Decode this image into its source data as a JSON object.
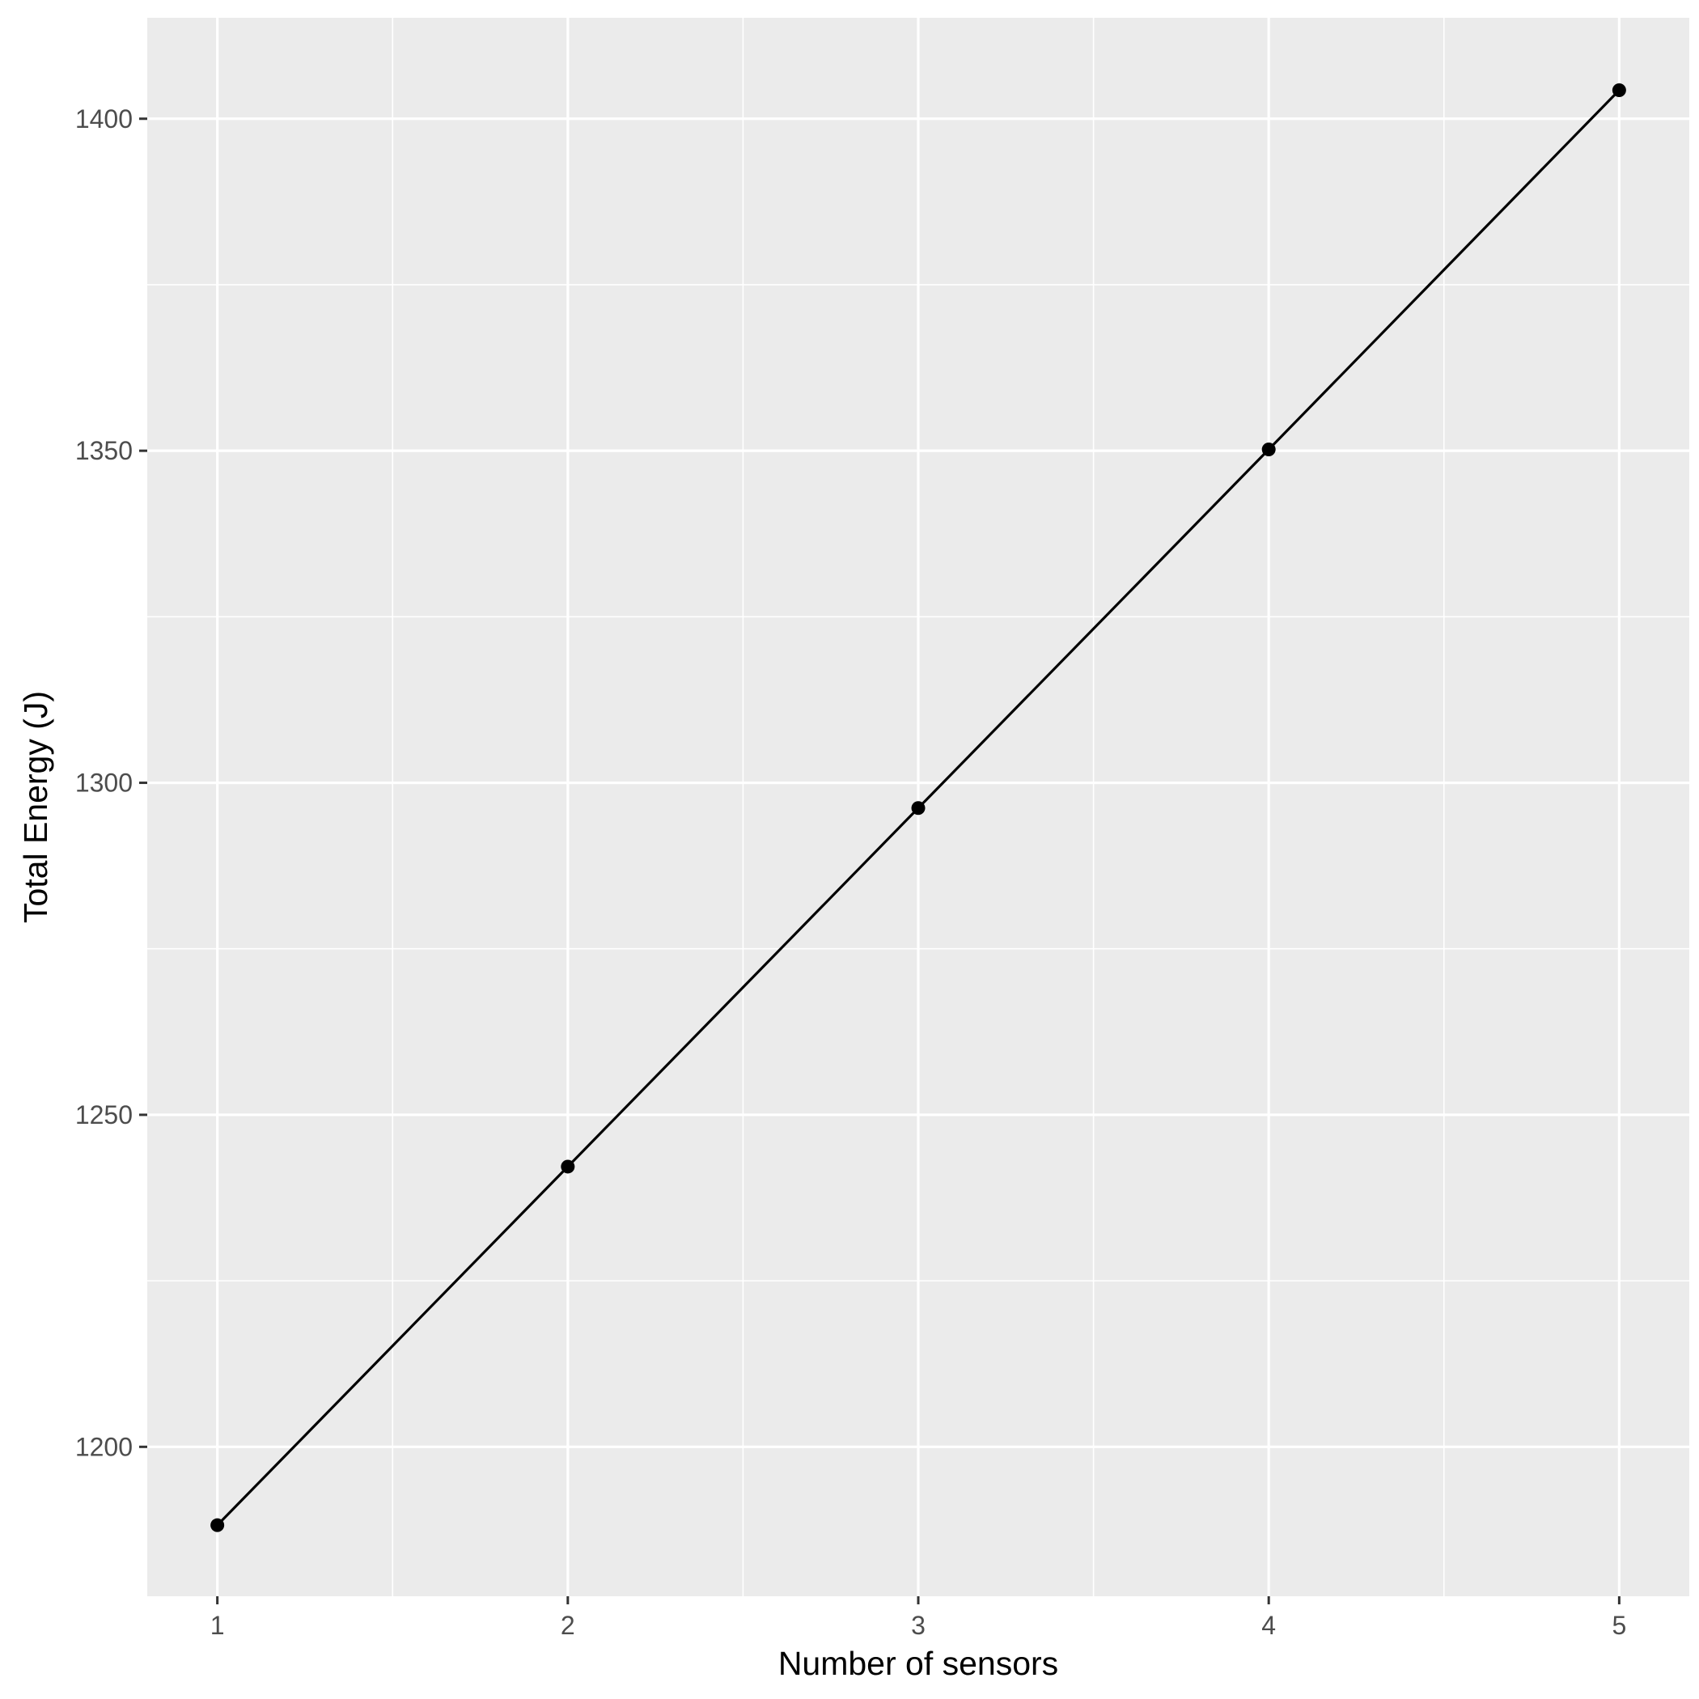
{
  "chart_data": {
    "type": "line",
    "title": "",
    "xlabel": "Number of sensors",
    "ylabel": "Total Energy (J)",
    "x": [
      1,
      2,
      3,
      4,
      5
    ],
    "series": [
      {
        "values": [
          1188.2,
          1242.2,
          1296.2,
          1350.2,
          1404.3
        ]
      }
    ],
    "xlim": [
      0.8,
      5.2
    ],
    "ylim": [
      1177.5,
      1415.2
    ],
    "x_ticks": [
      1,
      2,
      3,
      4,
      5
    ],
    "x_tick_labels": [
      "1",
      "2",
      "3",
      "4",
      "5"
    ],
    "y_ticks": [
      1200,
      1250,
      1300,
      1350,
      1400
    ],
    "y_tick_labels": [
      "1200",
      "1250",
      "1300",
      "1350",
      "1400"
    ],
    "x_minor_ticks": [
      1.5,
      2.5,
      3.5,
      4.5
    ],
    "y_minor_ticks": [
      1225,
      1275,
      1325,
      1375
    ],
    "grid": true,
    "legend": "none",
    "colors": {
      "panel_background": "#ebebeb",
      "grid_line": "#ffffff",
      "series_line": "#000000",
      "point": "#000000",
      "tick_mark": "#333333",
      "tick_label": "#4d4d4d",
      "axis_title": "#000000"
    }
  }
}
